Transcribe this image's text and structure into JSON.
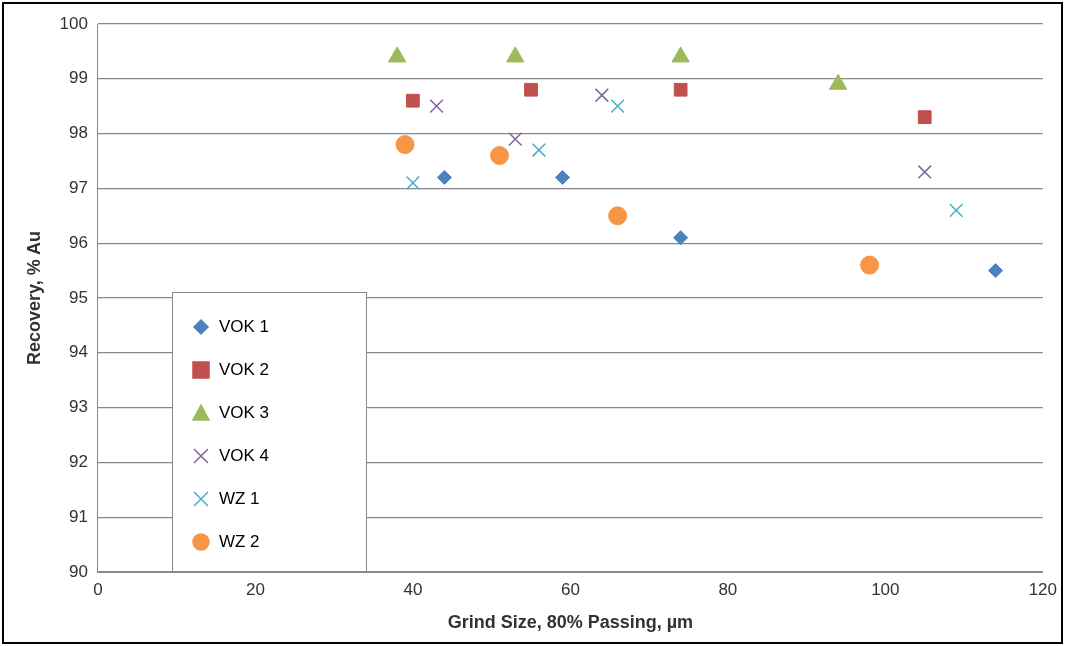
{
  "chart_data": {
    "type": "scatter",
    "xlabel": "Grind Size, 80% Passing, µm",
    "ylabel": "Recovery, % Au",
    "xlim": [
      0,
      120
    ],
    "xticks": [
      0,
      20,
      40,
      60,
      80,
      100,
      120
    ],
    "ylim": [
      90,
      100
    ],
    "yticks": [
      90,
      91,
      92,
      93,
      94,
      95,
      96,
      97,
      98,
      99,
      100
    ],
    "grid": "y",
    "legend": "bottom left",
    "series": [
      {
        "name": "VOK 1",
        "color": "#4f81bd",
        "marker": "diamond",
        "x": [
          44,
          59,
          74,
          114
        ],
        "values": [
          97.2,
          97.2,
          96.1,
          95.5
        ]
      },
      {
        "name": "VOK 2",
        "color": "#c0504d",
        "marker": "square",
        "x": [
          40,
          55,
          74,
          105
        ],
        "values": [
          98.6,
          98.8,
          98.8,
          98.3
        ]
      },
      {
        "name": "VOK 3",
        "color": "#9bbb59",
        "marker": "triangle",
        "x": [
          38,
          53,
          74,
          94
        ],
        "values": [
          99.4,
          99.4,
          99.4,
          98.9
        ]
      },
      {
        "name": "VOK 4",
        "color": "#8064a2",
        "marker": "cross",
        "x": [
          43,
          53,
          64,
          105
        ],
        "values": [
          98.5,
          97.9,
          98.7,
          97.3
        ]
      },
      {
        "name": "WZ 1",
        "color": "#4bacc6",
        "marker": "cross",
        "x": [
          40,
          56,
          66,
          109
        ],
        "values": [
          97.1,
          97.7,
          98.5,
          96.6
        ]
      },
      {
        "name": "WZ 2",
        "color": "#f79646",
        "marker": "circle",
        "x": [
          39,
          51,
          66,
          98
        ],
        "values": [
          97.8,
          97.6,
          96.5,
          95.6
        ]
      }
    ]
  }
}
